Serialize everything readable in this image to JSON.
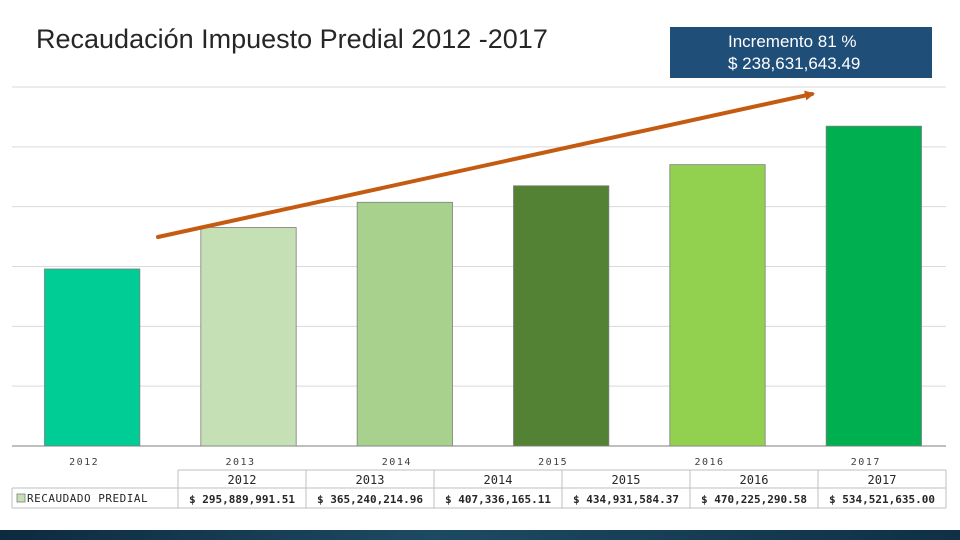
{
  "title": "Recaudación Impuesto Predial 2012 -2017",
  "callout": {
    "line1": "Incremento 81 %",
    "line2": "$  238,631,643.49",
    "color": "#1f4e79"
  },
  "chart_data": {
    "type": "bar",
    "title": "Recaudación Impuesto Predial 2012 -2017",
    "categories": [
      "2012",
      "2013",
      "2014",
      "2015",
      "2016",
      "2017"
    ],
    "series": [
      {
        "name": "RECAUDADO PREDIAL",
        "values": [
          295889991.51,
          365240214.96,
          407336165.11,
          434931584.37,
          470225290.58,
          534521635.0
        ]
      }
    ],
    "ylim": [
      0,
      600000000
    ],
    "grid": true,
    "bar_colors": [
      "#00cc96",
      "#c5e0b4",
      "#a9d18e",
      "#548235",
      "#92d050",
      "#00b050"
    ],
    "data_table": {
      "legend_label": "RECAUDADO PREDIAL",
      "headers": [
        "2012",
        "2013",
        "2014",
        "2015",
        "2016",
        "2017"
      ],
      "values": [
        "$ 295,889,991.51",
        "$ 365,240,214.96",
        "$ 407,336,165.11",
        "$ 434,931,584.37",
        "$ 470,225,290.58",
        "$ 534,521,635.00"
      ]
    },
    "trend_arrow_color": "#c55a11"
  }
}
